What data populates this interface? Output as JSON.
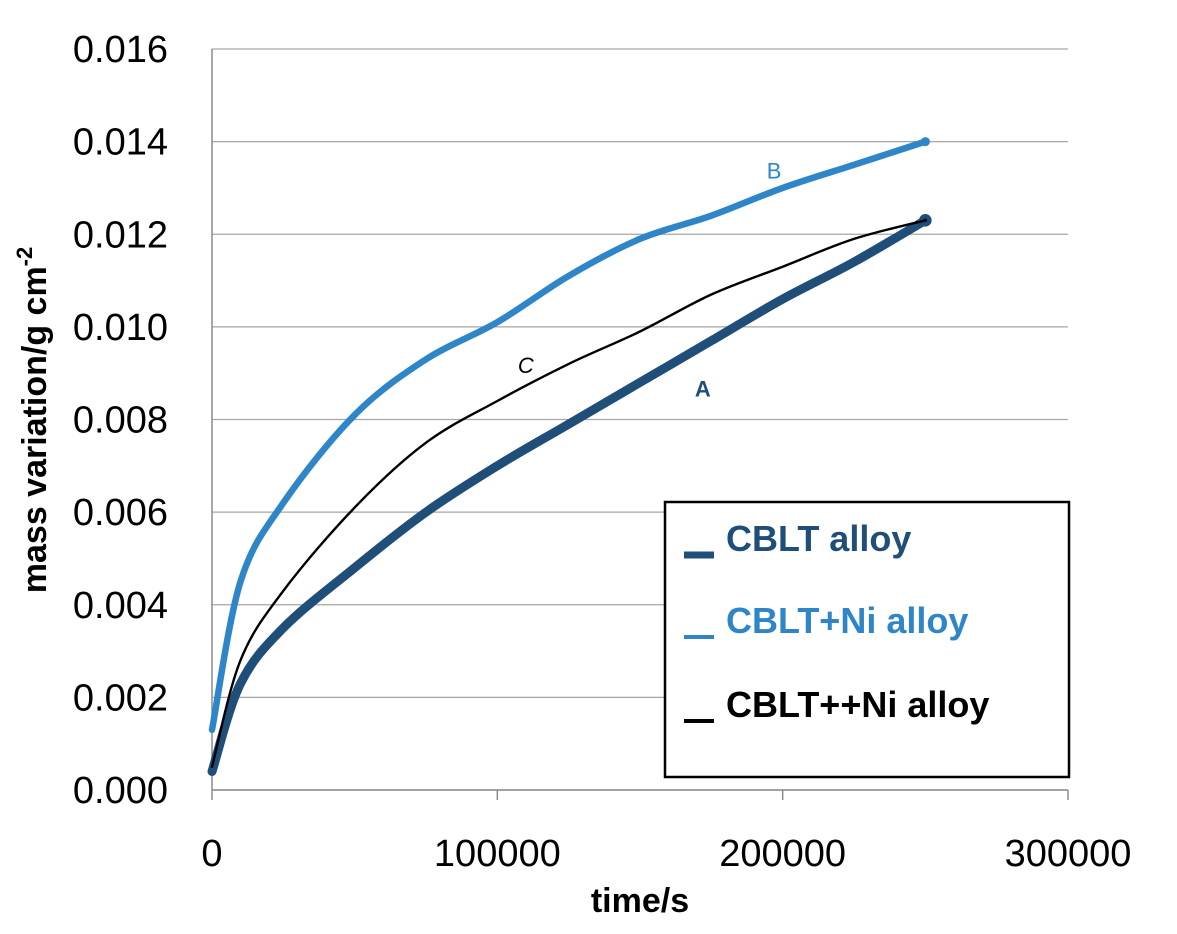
{
  "chart_data": {
    "type": "line",
    "title": "",
    "xlabel": "time/s",
    "ylabel": "mass variation/g cm",
    "ylabel_sup": "-2",
    "xlim": [
      0,
      300000
    ],
    "ylim": [
      0,
      0.016
    ],
    "x_ticks": [
      0,
      100000,
      200000,
      300000
    ],
    "x_tick_labels": [
      "0",
      "100000",
      "200000",
      "300000"
    ],
    "y_ticks": [
      0,
      0.002,
      0.004,
      0.006,
      0.008,
      0.01,
      0.012,
      0.014,
      0.016
    ],
    "y_tick_labels": [
      "0.000",
      "0.002",
      "0.004",
      "0.006",
      "0.008",
      "0.010",
      "0.012",
      "0.014",
      "0.016"
    ],
    "grid": "horizontal",
    "legend_position": "bottom-right",
    "series": [
      {
        "name": "CBLT alloy",
        "label": "A",
        "color": "#1f4e79",
        "marker": "thick",
        "x": [
          0,
          10000,
          25000,
          50000,
          75000,
          100000,
          125000,
          150000,
          175000,
          200000,
          225000,
          250000
        ],
        "y": [
          0.0004,
          0.0023,
          0.0035,
          0.0048,
          0.006,
          0.007,
          0.0079,
          0.0088,
          0.0097,
          0.0106,
          0.0114,
          0.0123
        ]
      },
      {
        "name": "CBLT+Ni alloy",
        "label": "B",
        "color": "#2e86c8",
        "marker": "medium",
        "x": [
          0,
          10000,
          25000,
          50000,
          75000,
          100000,
          125000,
          150000,
          175000,
          200000,
          225000,
          250000
        ],
        "y": [
          0.0013,
          0.0045,
          0.0062,
          0.0081,
          0.0093,
          0.0101,
          0.0111,
          0.0119,
          0.0124,
          0.013,
          0.0135,
          0.014
        ]
      },
      {
        "name": "CBLT++Ni alloy",
        "label": "C",
        "color": "#000000",
        "marker": "thin",
        "x": [
          0,
          10000,
          25000,
          50000,
          75000,
          100000,
          125000,
          150000,
          175000,
          200000,
          225000,
          250000
        ],
        "y": [
          0.0005,
          0.0028,
          0.0043,
          0.0061,
          0.0075,
          0.0084,
          0.0092,
          0.0099,
          0.0107,
          0.0113,
          0.0119,
          0.0123
        ]
      }
    ]
  }
}
